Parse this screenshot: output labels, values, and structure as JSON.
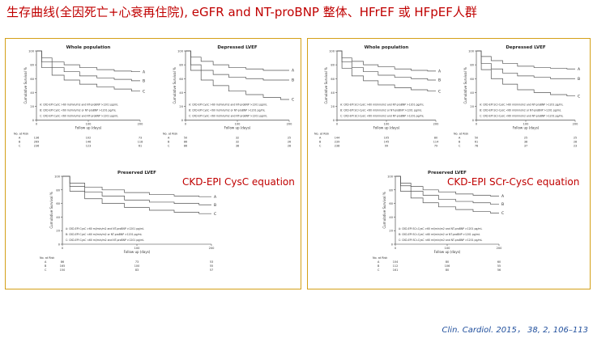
{
  "slide": {
    "title": "生存曲线(全因死亡+心衰再住院), eGFR and NT-proBNP 整体、HFrEF 或  HFpEF人群",
    "citation": "Clin. Cardiol. 2015， 38, 2, 106–113"
  },
  "panels": [
    {
      "id": "cysc",
      "equation_label": "CKD-EPI CysC equation",
      "plots": [
        {
          "title": "Whole population",
          "ylabel": "Cumulative Survival %",
          "xlabel": "Follow up (days)",
          "y_ticks": [
            "100",
            "80",
            "60",
            "40",
            "20",
            "0"
          ],
          "x_ticks": [
            "0",
            "100",
            "200"
          ],
          "legend": [
            "A: CKD-EPI CysC >60 ml/min/m2 and NT-proBNP >1201 pg/mL",
            "B: CKD-EPI CysC <60 ml/min/m2 or NT-proBNP >1201 pg/mL",
            "C: CKD-EPI CysC <60 ml/min/m2 and NT-proBNP >1201 pg/mL"
          ],
          "risk_header": "No. at Risk",
          "risk_rows": [
            {
              "label": "A",
              "values": [
                "136",
                "102",
                "73"
              ]
            },
            {
              "label": "B",
              "values": [
                "269",
                "146",
                "118"
              ]
            },
            {
              "label": "C",
              "values": [
                "236",
                "123",
                "61"
              ]
            }
          ]
        },
        {
          "title": "Depressed LVEF",
          "ylabel": "Cumulative Survival %",
          "xlabel": "Follow up (days)",
          "y_ticks": [
            "100",
            "80",
            "60",
            "40",
            "20",
            "0"
          ],
          "x_ticks": [
            "0",
            "100",
            "200"
          ],
          "legend": [
            "A: CKD-EPI CysC >60 ml/min/m2 and NT-proBNP >1201 pg/mL",
            "B: CKD-EPI CysC <60 ml/min/m2 or NT-proBNP >1201 pg/mL",
            "C: CKD-EPI CysC <60 ml/min/m2 and NT-proBNP >1201 pg/mL"
          ],
          "risk_header": "No. at Risk",
          "risk_rows": [
            {
              "label": "A",
              "values": [
                "50",
                "32",
                "25"
              ]
            },
            {
              "label": "B",
              "values": [
                "86",
                "32",
                "26"
              ]
            },
            {
              "label": "C",
              "values": [
                "86",
                "38",
                "28"
              ]
            }
          ]
        },
        {
          "title": "Preserved LVEF",
          "ylabel": "Cumulative Survival %",
          "xlabel": "Follow up (days)",
          "y_ticks": [
            "100",
            "80",
            "60",
            "40",
            "20",
            "0"
          ],
          "x_ticks": [
            "0",
            "100",
            "200"
          ],
          "legend": [
            "A: CKD-EPI CysC >60 ml/min/m2 and NT-proBNP >1201 pg/mL",
            "B: CKD-EPI CysC <60 ml/min/m2 or NT-proBNP >1201 pg/mL",
            "C: CKD-EPI CysC <60 ml/min/m2 and NT-proBNP >1201 pg/mL"
          ],
          "risk_header": "No. at Risk",
          "risk_rows": [
            {
              "label": "A",
              "values": [
                "86",
                "73",
                "53"
              ]
            },
            {
              "label": "B",
              "values": [
                "165",
                "100",
                "55"
              ]
            },
            {
              "label": "C",
              "values": [
                "150",
                "83",
                "57"
              ]
            }
          ]
        }
      ]
    },
    {
      "id": "scr",
      "equation_label": "CKD-EPI SCr-CysC equation",
      "plots": [
        {
          "title": "Whole population",
          "ylabel": "Cumulative Survival %",
          "xlabel": "Follow up (days)",
          "y_ticks": [
            "100",
            "80",
            "60",
            "40",
            "20",
            "0"
          ],
          "x_ticks": [
            "0",
            "100",
            "200"
          ],
          "legend": [
            "A: CKD-EPI SCr-CysC >60 ml/min/m2 and NT-proBNP >1201 pg/mL",
            "B: CKD-EPI SCr-CysC <60 ml/min/m2 or NT-proBNP >1201 pg/mL",
            "C: CKD-EPI SCr-CysC <60 ml/min/m2 and NT-proBNP >1201 pg/mL"
          ],
          "risk_header": "No. at Risk",
          "risk_rows": [
            {
              "label": "A",
              "values": [
                "144",
                "105",
                "80"
              ]
            },
            {
              "label": "B",
              "values": [
                "239",
                "145",
                "114"
              ]
            },
            {
              "label": "C",
              "values": [
                "238",
                "99",
                "79"
              ]
            }
          ]
        },
        {
          "title": "Depressed LVEF",
          "ylabel": "Cumulative Survival %",
          "xlabel": "Follow up (days)",
          "y_ticks": [
            "100",
            "80",
            "60",
            "40",
            "20",
            "0"
          ],
          "x_ticks": [
            "0",
            "100",
            "200"
          ],
          "legend": [
            "A: CKD-EPI SCr-CysC >60 ml/min/m2 and NT-proBNP >1201 pg/mL",
            "B: CKD-EPI SCr-CysC <60 ml/min/m2 or NT-proBNP >1201 pg/mL",
            "C: CKD-EPI SCr-CysC <60 ml/min/m2 and NT-proBNP >1201 pg/mL"
          ],
          "risk_header": "No. at Risk",
          "risk_rows": [
            {
              "label": "A",
              "values": [
                "50",
                "25",
                "25"
              ]
            },
            {
              "label": "B",
              "values": [
                "61",
                "38",
                "28"
              ]
            },
            {
              "label": "C",
              "values": [
                "78",
                "37",
                "23"
              ]
            }
          ]
        },
        {
          "title": "Preserved LVEF",
          "ylabel": "Cumulative Survival %",
          "xlabel": "Follow up (days)",
          "y_ticks": [
            "100",
            "80",
            "60",
            "40",
            "20",
            "0"
          ],
          "x_ticks": [
            "0",
            "100",
            "200"
          ],
          "legend": [
            "A: CKD-EPI SCr-CysC >60 ml/min/m2 and NT-proBNP >1201 pg/mL",
            "B: CKD-EPI SCr-CysC <60 ml/min/m2 or NT-proBNP >1201 pg/mL",
            "C: CKD-EPI SCr-CysC <60 ml/min/m2 and NT-proBNP >1201 pg/mL"
          ],
          "risk_header": "No. at Risk",
          "risk_rows": [
            {
              "label": "A",
              "values": [
                "104",
                "80",
                "60"
              ]
            },
            {
              "label": "B",
              "values": [
                "112",
                "106",
                "55"
              ]
            },
            {
              "label": "C",
              "values": [
                "161",
                "80",
                "56"
              ]
            }
          ]
        }
      ]
    }
  ],
  "colors": {
    "title": "#c00000",
    "panel_border": "#d4a017",
    "citation": "#1f4e9c",
    "curves": "#555555"
  },
  "chart_data": [
    {
      "type": "line",
      "title": "Whole population",
      "xlabel": "Follow up (days)",
      "ylabel": "Cumulative Survival %",
      "xlim": [
        0,
        300
      ],
      "ylim": [
        0,
        100
      ],
      "series": [
        {
          "name": "A",
          "x": [
            0,
            30,
            60,
            100,
            150,
            200,
            250,
            300
          ],
          "y": [
            100,
            90,
            84,
            80,
            76,
            73,
            71,
            70
          ]
        },
        {
          "name": "B",
          "x": [
            0,
            30,
            60,
            100,
            150,
            200,
            250,
            300
          ],
          "y": [
            100,
            84,
            76,
            70,
            64,
            61,
            59,
            57
          ]
        },
        {
          "name": "C",
          "x": [
            0,
            30,
            60,
            100,
            150,
            200,
            250,
            300
          ],
          "y": [
            100,
            76,
            65,
            58,
            52,
            48,
            45,
            42
          ]
        }
      ]
    },
    {
      "type": "line",
      "title": "Depressed LVEF",
      "xlabel": "Follow up (days)",
      "ylabel": "Cumulative Survival %",
      "xlim": [
        0,
        300
      ],
      "ylim": [
        0,
        100
      ],
      "series": [
        {
          "name": "A",
          "x": [
            0,
            30,
            60,
            100,
            150,
            200,
            250,
            300
          ],
          "y": [
            100,
            91,
            85,
            80,
            76,
            74,
            72,
            72
          ]
        },
        {
          "name": "B",
          "x": [
            0,
            30,
            60,
            100,
            150,
            200,
            250,
            300
          ],
          "y": [
            100,
            80,
            72,
            66,
            62,
            60,
            58,
            58
          ]
        },
        {
          "name": "C",
          "x": [
            0,
            30,
            60,
            100,
            150,
            200,
            250,
            300
          ],
          "y": [
            100,
            72,
            58,
            50,
            42,
            37,
            33,
            30
          ]
        }
      ]
    },
    {
      "type": "line",
      "title": "Preserved LVEF",
      "xlabel": "Follow up (days)",
      "ylabel": "Cumulative Survival %",
      "xlim": [
        0,
        300
      ],
      "ylim": [
        0,
        100
      ],
      "series": [
        {
          "name": "A",
          "x": [
            0,
            30,
            60,
            100,
            150,
            200,
            250,
            300
          ],
          "y": [
            100,
            90,
            84,
            80,
            76,
            73,
            71,
            70
          ]
        },
        {
          "name": "B",
          "x": [
            0,
            30,
            60,
            100,
            150,
            200,
            250,
            300
          ],
          "y": [
            100,
            85,
            77,
            71,
            65,
            62,
            60,
            58
          ]
        },
        {
          "name": "C",
          "x": [
            0,
            30,
            60,
            100,
            150,
            200,
            250,
            300
          ],
          "y": [
            100,
            78,
            67,
            60,
            54,
            50,
            47,
            45
          ]
        }
      ]
    },
    {
      "type": "line",
      "title": "Whole population",
      "xlabel": "Follow up (days)",
      "ylabel": "Cumulative Survival %",
      "xlim": [
        0,
        300
      ],
      "ylim": [
        0,
        100
      ],
      "series": [
        {
          "name": "A",
          "x": [
            0,
            30,
            60,
            100,
            150,
            200,
            250,
            300
          ],
          "y": [
            100,
            90,
            85,
            80,
            77,
            74,
            72,
            71
          ]
        },
        {
          "name": "B",
          "x": [
            0,
            30,
            60,
            100,
            150,
            200,
            250,
            300
          ],
          "y": [
            100,
            84,
            76,
            70,
            65,
            62,
            60,
            58
          ]
        },
        {
          "name": "C",
          "x": [
            0,
            30,
            60,
            100,
            150,
            200,
            250,
            300
          ],
          "y": [
            100,
            75,
            64,
            57,
            51,
            47,
            44,
            42
          ]
        }
      ]
    },
    {
      "type": "line",
      "title": "Depressed LVEF",
      "xlabel": "Follow up (days)",
      "ylabel": "Cumulative Survival %",
      "xlim": [
        0,
        300
      ],
      "ylim": [
        0,
        100
      ],
      "series": [
        {
          "name": "A",
          "x": [
            0,
            30,
            60,
            100,
            150,
            200,
            250,
            300
          ],
          "y": [
            100,
            92,
            86,
            82,
            78,
            76,
            75,
            74
          ]
        },
        {
          "name": "B",
          "x": [
            0,
            30,
            60,
            100,
            150,
            200,
            250,
            300
          ],
          "y": [
            100,
            82,
            74,
            68,
            64,
            62,
            60,
            60
          ]
        },
        {
          "name": "C",
          "x": [
            0,
            30,
            60,
            100,
            150,
            200,
            250,
            300
          ],
          "y": [
            100,
            73,
            60,
            52,
            44,
            40,
            37,
            35
          ]
        }
      ]
    },
    {
      "type": "line",
      "title": "Preserved LVEF",
      "xlabel": "Follow up (days)",
      "ylabel": "Cumulative Survival %",
      "xlim": [
        0,
        300
      ],
      "ylim": [
        0,
        100
      ],
      "series": [
        {
          "name": "A",
          "x": [
            0,
            30,
            60,
            100,
            150,
            200,
            250,
            300
          ],
          "y": [
            100,
            90,
            85,
            80,
            77,
            74,
            72,
            71
          ]
        },
        {
          "name": "B",
          "x": [
            0,
            30,
            60,
            100,
            150,
            200,
            250,
            300
          ],
          "y": [
            100,
            86,
            78,
            72,
            66,
            63,
            61,
            59
          ]
        },
        {
          "name": "C",
          "x": [
            0,
            30,
            60,
            100,
            150,
            200,
            250,
            300
          ],
          "y": [
            100,
            78,
            68,
            61,
            55,
            51,
            48,
            46
          ]
        }
      ]
    }
  ]
}
